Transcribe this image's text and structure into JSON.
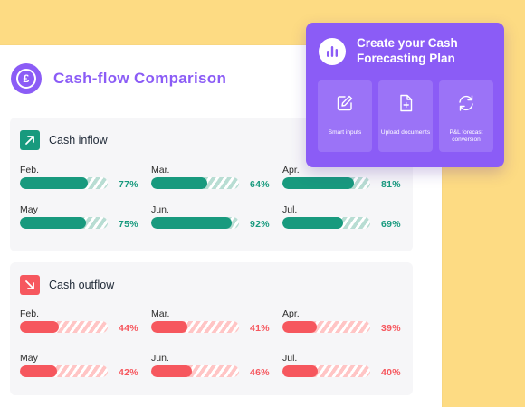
{
  "header": {
    "title": "Cash-flow Comparison",
    "icon": "pound-icon",
    "accent": "#8b5cf6"
  },
  "inflow": {
    "label": "Cash inflow",
    "color": "#189a7e",
    "items": [
      {
        "month": "Feb.",
        "pct": "77%",
        "value": 0.77
      },
      {
        "month": "Mar.",
        "pct": "64%",
        "value": 0.64
      },
      {
        "month": "Apr.",
        "pct": "81%",
        "value": 0.81
      },
      {
        "month": "May",
        "pct": "75%",
        "value": 0.75
      },
      {
        "month": "Jun.",
        "pct": "92%",
        "value": 0.92
      },
      {
        "month": "Jul.",
        "pct": "69%",
        "value": 0.69
      }
    ]
  },
  "outflow": {
    "label": "Cash outflow",
    "color": "#f6575e",
    "items": [
      {
        "month": "Feb.",
        "pct": "44%",
        "value": 0.44
      },
      {
        "month": "Mar.",
        "pct": "41%",
        "value": 0.41
      },
      {
        "month": "Apr.",
        "pct": "39%",
        "value": 0.39
      },
      {
        "month": "May",
        "pct": "42%",
        "value": 0.42
      },
      {
        "month": "Jun.",
        "pct": "46%",
        "value": 0.46
      },
      {
        "month": "Jul.",
        "pct": "40%",
        "value": 0.4
      }
    ]
  },
  "plan": {
    "title": "Create your Cash Forecasting Plan",
    "tiles": [
      {
        "label": "Smart inputs",
        "icon": "edit-icon"
      },
      {
        "label": "Upload documents",
        "icon": "file-plus-icon"
      },
      {
        "label": "P&L forecast conversion",
        "icon": "refresh-icon"
      }
    ]
  }
}
